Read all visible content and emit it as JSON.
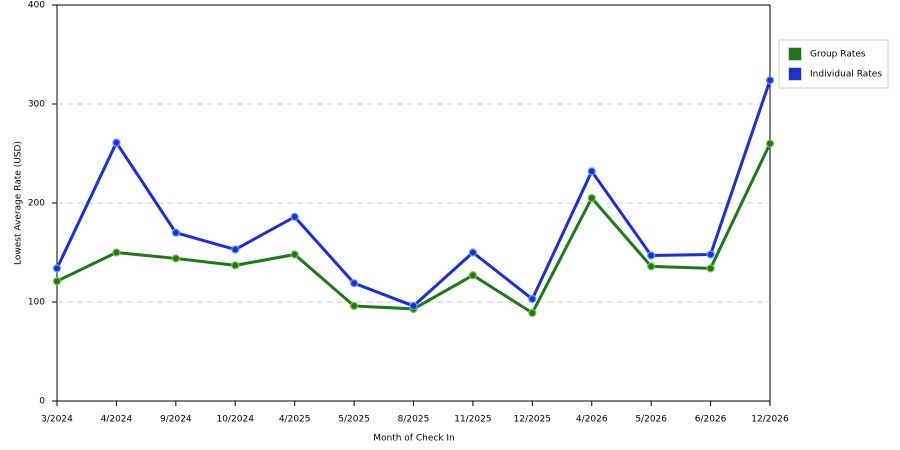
{
  "chart_data": {
    "type": "line",
    "xlabel": "Month of Check In",
    "ylabel": "Lowest Average Rate (USD)",
    "categories": [
      "3/2024",
      "4/2024",
      "9/2024",
      "10/2024",
      "4/2025",
      "5/2025",
      "8/2025",
      "11/2025",
      "12/2025",
      "4/2026",
      "5/2026",
      "6/2026",
      "12/2026"
    ],
    "series": [
      {
        "name": "Group Rates",
        "color": "#1a7a1a",
        "values": [
          121,
          150,
          144,
          137,
          148,
          96,
          93,
          127,
          89,
          205,
          136,
          134,
          260
        ]
      },
      {
        "name": "Individual Rates",
        "color": "#1a2fd6",
        "values": [
          134,
          261,
          170,
          153,
          186,
          119,
          96,
          150,
          103,
          232,
          147,
          148,
          324
        ]
      }
    ],
    "ylim": [
      0,
      400
    ],
    "yticks": [
      0,
      100,
      200,
      300,
      400
    ],
    "grid": true,
    "legend": "right"
  }
}
